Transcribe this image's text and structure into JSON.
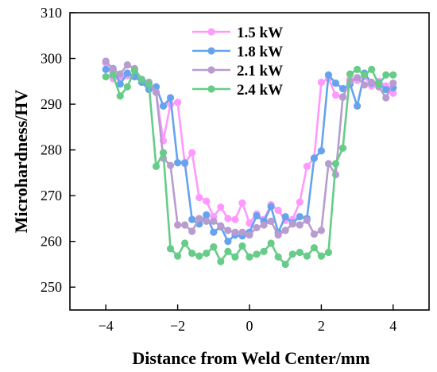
{
  "chart_data": {
    "type": "line",
    "title": "",
    "xlabel": "Distance from Weld Center/mm",
    "ylabel": "Microhardness/HV",
    "xlim": [
      -5,
      5
    ],
    "ylim": [
      245,
      310
    ],
    "xticks": [
      -4,
      -2,
      0,
      2,
      4
    ],
    "yticks": [
      250,
      260,
      270,
      280,
      290,
      300,
      310
    ],
    "grid": false,
    "legend_position": "top-center",
    "x": [
      -4.0,
      -3.8,
      -3.6,
      -3.4,
      -3.2,
      -3.0,
      -2.8,
      -2.6,
      -2.4,
      -2.2,
      -2.0,
      -1.8,
      -1.6,
      -1.4,
      -1.2,
      -1.0,
      -0.8,
      -0.6,
      -0.4,
      -0.2,
      0.0,
      0.2,
      0.4,
      0.6,
      0.8,
      1.0,
      1.2,
      1.4,
      1.6,
      1.8,
      2.0,
      2.2,
      2.4,
      2.6,
      2.8,
      3.0,
      3.2,
      3.4,
      3.6,
      3.8,
      4.0
    ],
    "series": [
      {
        "name": "1.5 kW",
        "color": "#ff99ff",
        "values": [
          299.0,
          295.6,
          296.0,
          296.2,
          296.4,
          295.0,
          294.0,
          292.6,
          282.0,
          290.0,
          290.4,
          277.0,
          279.4,
          269.6,
          268.8,
          265.4,
          267.5,
          265.0,
          264.8,
          268.4,
          264.0,
          266.0,
          264.8,
          268.0,
          266.8,
          264.6,
          264.8,
          268.6,
          276.4,
          278.2,
          294.8,
          295.6,
          292.0,
          291.5,
          295.5,
          295.2,
          296.0,
          294.0,
          295.0,
          294.0,
          292.4
        ]
      },
      {
        "name": "1.8 kW",
        "color": "#66a3ee",
        "values": [
          297.6,
          297.8,
          294.4,
          296.8,
          296.0,
          294.8,
          293.2,
          293.8,
          289.6,
          291.4,
          277.2,
          277.2,
          264.8,
          263.8,
          265.8,
          262.0,
          263.2,
          260.0,
          261.4,
          261.2,
          262.0,
          265.6,
          264.4,
          267.6,
          262.0,
          265.4,
          264.0,
          265.4,
          265.0,
          278.2,
          279.8,
          296.4,
          294.6,
          293.4,
          294.4,
          289.6,
          296.8,
          294.6,
          294.6,
          293.2,
          293.6
        ]
      },
      {
        "name": "2.1 kW",
        "color": "#b89cd0",
        "values": [
          299.4,
          297.6,
          296.6,
          298.6,
          297.8,
          295.4,
          294.8,
          292.6,
          278.2,
          276.6,
          263.6,
          263.6,
          262.2,
          265.0,
          264.4,
          264.4,
          263.4,
          262.4,
          262.0,
          262.0,
          261.4,
          263.0,
          263.6,
          264.4,
          261.4,
          262.4,
          263.8,
          263.6,
          264.6,
          261.6,
          262.4,
          277.0,
          274.6,
          291.6,
          295.0,
          295.8,
          294.2,
          294.8,
          293.8,
          291.4,
          294.6
        ]
      },
      {
        "name": "2.4 kW",
        "color": "#66cc88",
        "values": [
          296.0,
          296.4,
          291.8,
          293.8,
          297.4,
          295.4,
          294.4,
          276.4,
          279.4,
          258.4,
          256.8,
          259.6,
          257.4,
          256.8,
          257.4,
          258.8,
          255.6,
          257.8,
          256.6,
          259.0,
          256.6,
          257.2,
          257.8,
          259.6,
          256.6,
          255.0,
          257.2,
          257.6,
          256.8,
          258.6,
          256.8,
          257.6,
          277.0,
          280.4,
          296.6,
          297.6,
          296.4,
          297.6,
          294.4,
          296.4,
          296.4
        ]
      }
    ]
  }
}
